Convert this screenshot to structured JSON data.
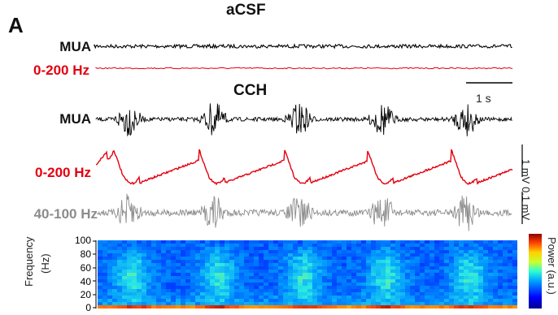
{
  "panel_letter": "A",
  "conditions": {
    "baseline": "aCSF",
    "treatment": "CCH"
  },
  "trace_labels": {
    "mua_1": "MUA",
    "lfp_1": "0-200 Hz",
    "mua_2": "MUA",
    "lfp_2": "0-200 Hz",
    "gamma_2": "40-100 Hz"
  },
  "scale_bars": {
    "time": "1 s",
    "lfp": "1 mV",
    "gamma": "0.1 mV"
  },
  "spectrogram": {
    "ylabel": "Frequency\n(Hz)",
    "ylabel_line1": "Frequency",
    "ylabel_line2": "(Hz)",
    "yticks": [
      "100",
      "80",
      "60",
      "40",
      "20",
      "0"
    ],
    "colorbar_label": "Power (a.u.)",
    "colorbar_max": "1",
    "colorbar_min": "0"
  },
  "colors": {
    "mua": "#000000",
    "lfp": "#e3000f",
    "gamma": "#8c8c8c"
  }
}
